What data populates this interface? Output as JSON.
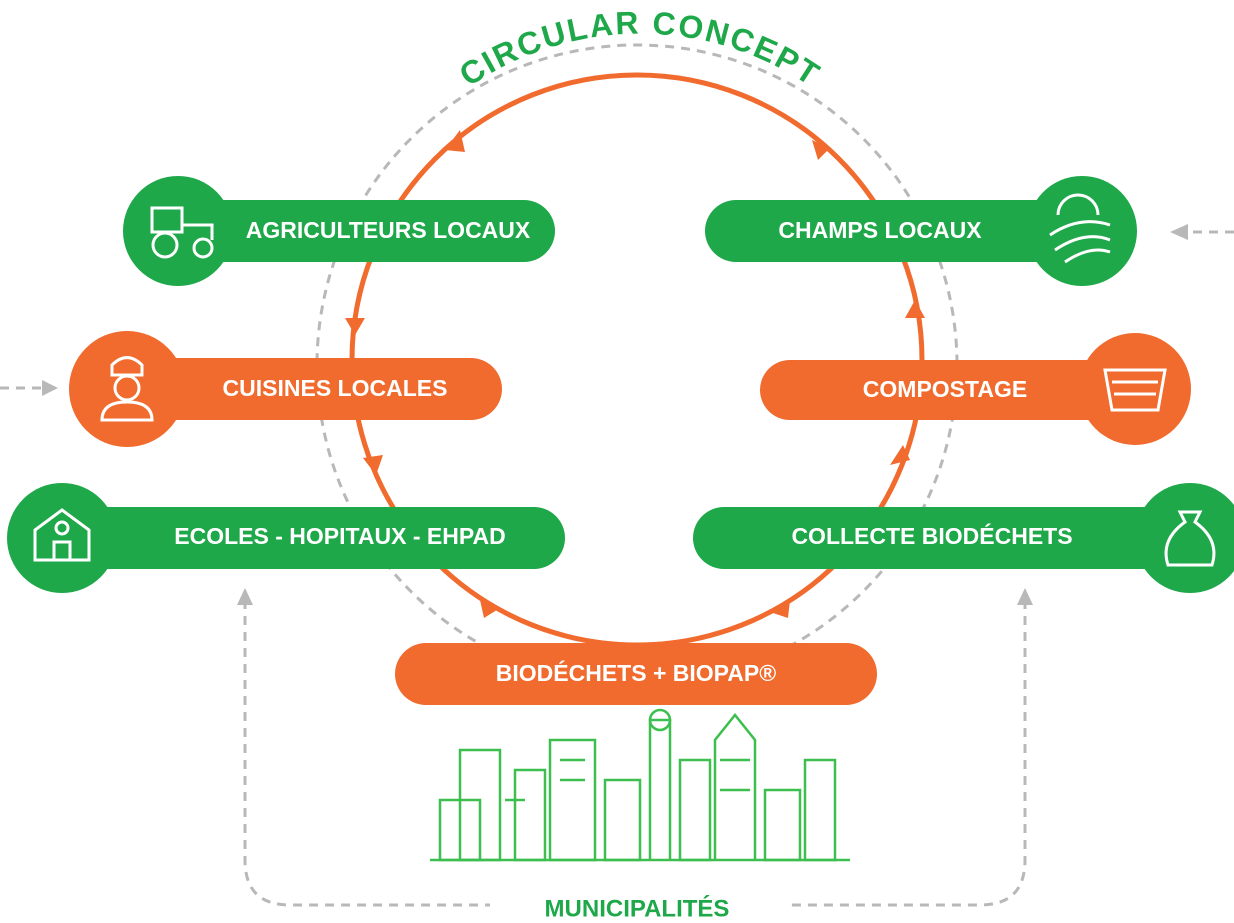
{
  "title": "CIRCULAR CONCEPT",
  "nodes": [
    {
      "label": "AGRICULTEURS LOCAUX"
    },
    {
      "label": "CHAMPS LOCAUX"
    },
    {
      "label": "CUISINES LOCALES"
    },
    {
      "label": "COMPOSTAGE"
    },
    {
      "label": "ECOLES - HOPITAUX - EHPAD"
    },
    {
      "label": "COLLECTE BIODÉCHETS"
    },
    {
      "label": "BIODÉCHETS + BIOPAP®"
    }
  ],
  "footer": {
    "label": "MUNICIPALITÉS"
  }
}
